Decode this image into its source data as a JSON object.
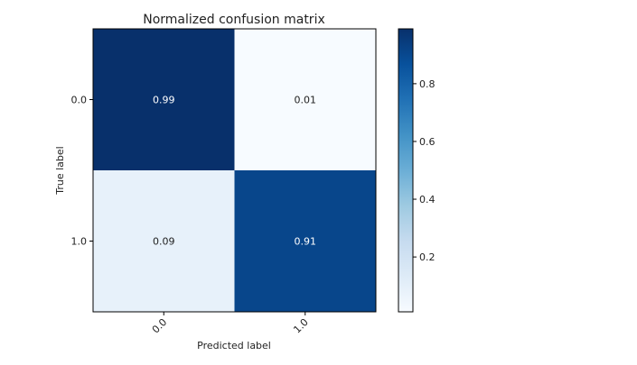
{
  "chart_data": {
    "type": "heatmap",
    "title": "Normalized confusion matrix",
    "xlabel": "Predicted label",
    "ylabel": "True label",
    "x_categories": [
      "0.0",
      "1.0"
    ],
    "y_categories": [
      "0.0",
      "1.0"
    ],
    "values": [
      [
        0.99,
        0.01
      ],
      [
        0.09,
        0.91
      ]
    ],
    "value_labels": [
      [
        "0.99",
        "0.01"
      ],
      [
        "0.09",
        "0.91"
      ]
    ],
    "colormap": "Blues",
    "colorbar": {
      "range": [
        0.01,
        0.99
      ],
      "ticks": [
        0.2,
        0.4,
        0.6,
        0.8
      ],
      "tick_labels": [
        "0.2",
        "0.4",
        "0.6",
        "0.8"
      ]
    },
    "colors": {
      "low": "#f7fbff",
      "high": "#08306b",
      "cell_text_dark_bg": "#ffffff",
      "cell_text_light_bg": "#222222"
    }
  }
}
